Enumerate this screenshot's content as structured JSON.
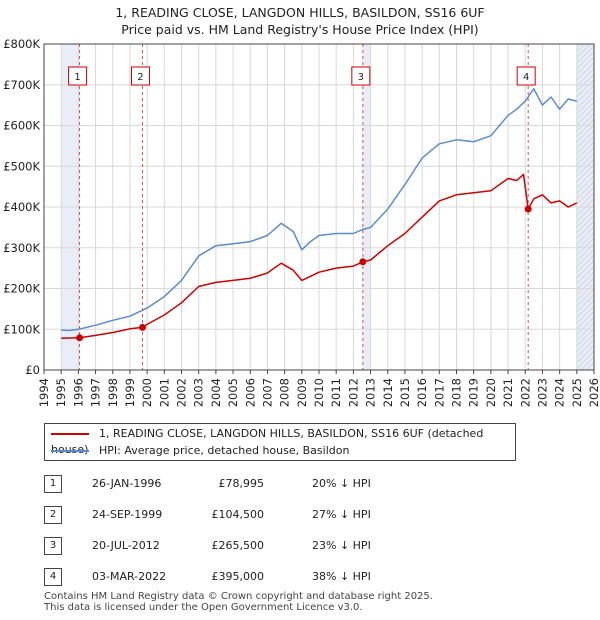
{
  "title_line1": "1, READING CLOSE, LANGDON HILLS, BASILDON, SS16 6UF",
  "title_line2": "Price paid vs. HM Land Registry's House Price Index (HPI)",
  "chart_data": {
    "type": "line",
    "title": "1, READING CLOSE, LANGDON HILLS, BASILDON, SS16 6UF",
    "subtitle": "Price paid vs. HM Land Registry's House Price Index (HPI)",
    "xlabel": "",
    "ylabel": "",
    "xlim": [
      1994,
      2026
    ],
    "ylim": [
      0,
      800000
    ],
    "grid": true,
    "y_ticks": [
      {
        "value": 0,
        "label": "£0"
      },
      {
        "value": 100000,
        "label": "£100K"
      },
      {
        "value": 200000,
        "label": "£200K"
      },
      {
        "value": 300000,
        "label": "£300K"
      },
      {
        "value": 400000,
        "label": "£400K"
      },
      {
        "value": 500000,
        "label": "£500K"
      },
      {
        "value": 600000,
        "label": "£600K"
      },
      {
        "value": 700000,
        "label": "£700K"
      },
      {
        "value": 800000,
        "label": "£800K"
      }
    ],
    "x_ticks": [
      "1994",
      "1995",
      "1996",
      "1997",
      "1998",
      "1999",
      "2000",
      "2001",
      "2002",
      "2003",
      "2004",
      "2005",
      "2006",
      "2007",
      "2008",
      "2009",
      "2010",
      "2011",
      "2012",
      "2013",
      "2014",
      "2015",
      "2016",
      "2017",
      "2018",
      "2019",
      "2020",
      "2021",
      "2022",
      "2023",
      "2024",
      "2025",
      "2026"
    ],
    "shaded_regions": [
      [
        1995.0,
        1996.07
      ],
      [
        2012.55,
        2013.0
      ],
      [
        2025.0,
        2026.0
      ]
    ],
    "series": [
      {
        "name": "1, READING CLOSE, LANGDON HILLS, BASILDON, SS16 6UF (detached house)",
        "color": "#cc0000",
        "x": [
          1995.0,
          1995.5,
          1996.07,
          1997.0,
          1998.0,
          1999.0,
          1999.73,
          2000.0,
          2001.0,
          2002.0,
          2003.0,
          2004.0,
          2005.0,
          2006.0,
          2007.0,
          2007.8,
          2008.5,
          2009.0,
          2009.5,
          2010.0,
          2011.0,
          2012.0,
          2012.55,
          2013.0,
          2014.0,
          2015.0,
          2016.0,
          2017.0,
          2018.0,
          2019.0,
          2020.0,
          2021.0,
          2021.5,
          2021.9,
          2022.17,
          2022.5,
          2023.0,
          2023.5,
          2024.0,
          2024.5,
          2025.0
        ],
        "values": [
          78000,
          78500,
          78995,
          85000,
          92000,
          101000,
          104500,
          112000,
          135000,
          165000,
          205000,
          215000,
          220000,
          225000,
          238000,
          262000,
          245000,
          220000,
          230000,
          240000,
          250000,
          255000,
          265500,
          270000,
          305000,
          335000,
          375000,
          415000,
          430000,
          435000,
          440000,
          470000,
          465000,
          480000,
          395000,
          420000,
          430000,
          410000,
          415000,
          400000,
          410000
        ]
      },
      {
        "name": "HPI: Average price, detached house, Basildon",
        "color": "#5a8ccc",
        "x": [
          1995.0,
          1995.5,
          1996.0,
          1997.0,
          1998.0,
          1999.0,
          2000.0,
          2001.0,
          2002.0,
          2003.0,
          2004.0,
          2005.0,
          2006.0,
          2007.0,
          2007.8,
          2008.5,
          2009.0,
          2009.5,
          2010.0,
          2011.0,
          2012.0,
          2012.55,
          2013.0,
          2014.0,
          2015.0,
          2016.0,
          2017.0,
          2018.0,
          2019.0,
          2020.0,
          2021.0,
          2021.5,
          2022.0,
          2022.5,
          2023.0,
          2023.5,
          2024.0,
          2024.5,
          2025.0
        ],
        "values": [
          98000,
          97000,
          100000,
          110000,
          122000,
          132000,
          152000,
          180000,
          220000,
          280000,
          305000,
          310000,
          315000,
          330000,
          360000,
          340000,
          295000,
          315000,
          330000,
          335000,
          335000,
          345000,
          350000,
          395000,
          455000,
          520000,
          555000,
          565000,
          560000,
          575000,
          625000,
          640000,
          660000,
          690000,
          650000,
          670000,
          640000,
          665000,
          660000
        ]
      }
    ],
    "sales": [
      {
        "id": "1",
        "x": 1996.07,
        "price": 78995
      },
      {
        "id": "2",
        "x": 1999.73,
        "price": 104500
      },
      {
        "id": "3",
        "x": 2012.55,
        "price": 265500
      },
      {
        "id": "4",
        "x": 2022.17,
        "price": 395000
      }
    ]
  },
  "legend": {
    "property_label": "1, READING CLOSE, LANGDON HILLS, BASILDON, SS16 6UF (detached house)",
    "hpi_label": "HPI: Average price, detached house, Basildon"
  },
  "sales_table": [
    {
      "num": "1",
      "date": "26-JAN-1996",
      "price": "£78,995",
      "hpi": "20% ↓ HPI"
    },
    {
      "num": "2",
      "date": "24-SEP-1999",
      "price": "£104,500",
      "hpi": "27% ↓ HPI"
    },
    {
      "num": "3",
      "date": "20-JUL-2012",
      "price": "£265,500",
      "hpi": "23% ↓ HPI"
    },
    {
      "num": "4",
      "date": "03-MAR-2022",
      "price": "£395,000",
      "hpi": "38% ↓ HPI"
    }
  ],
  "footer": {
    "line1": "Contains HM Land Registry data © Crown copyright and database right 2025.",
    "line2": "This data is licensed under the Open Government Licence v3.0."
  }
}
